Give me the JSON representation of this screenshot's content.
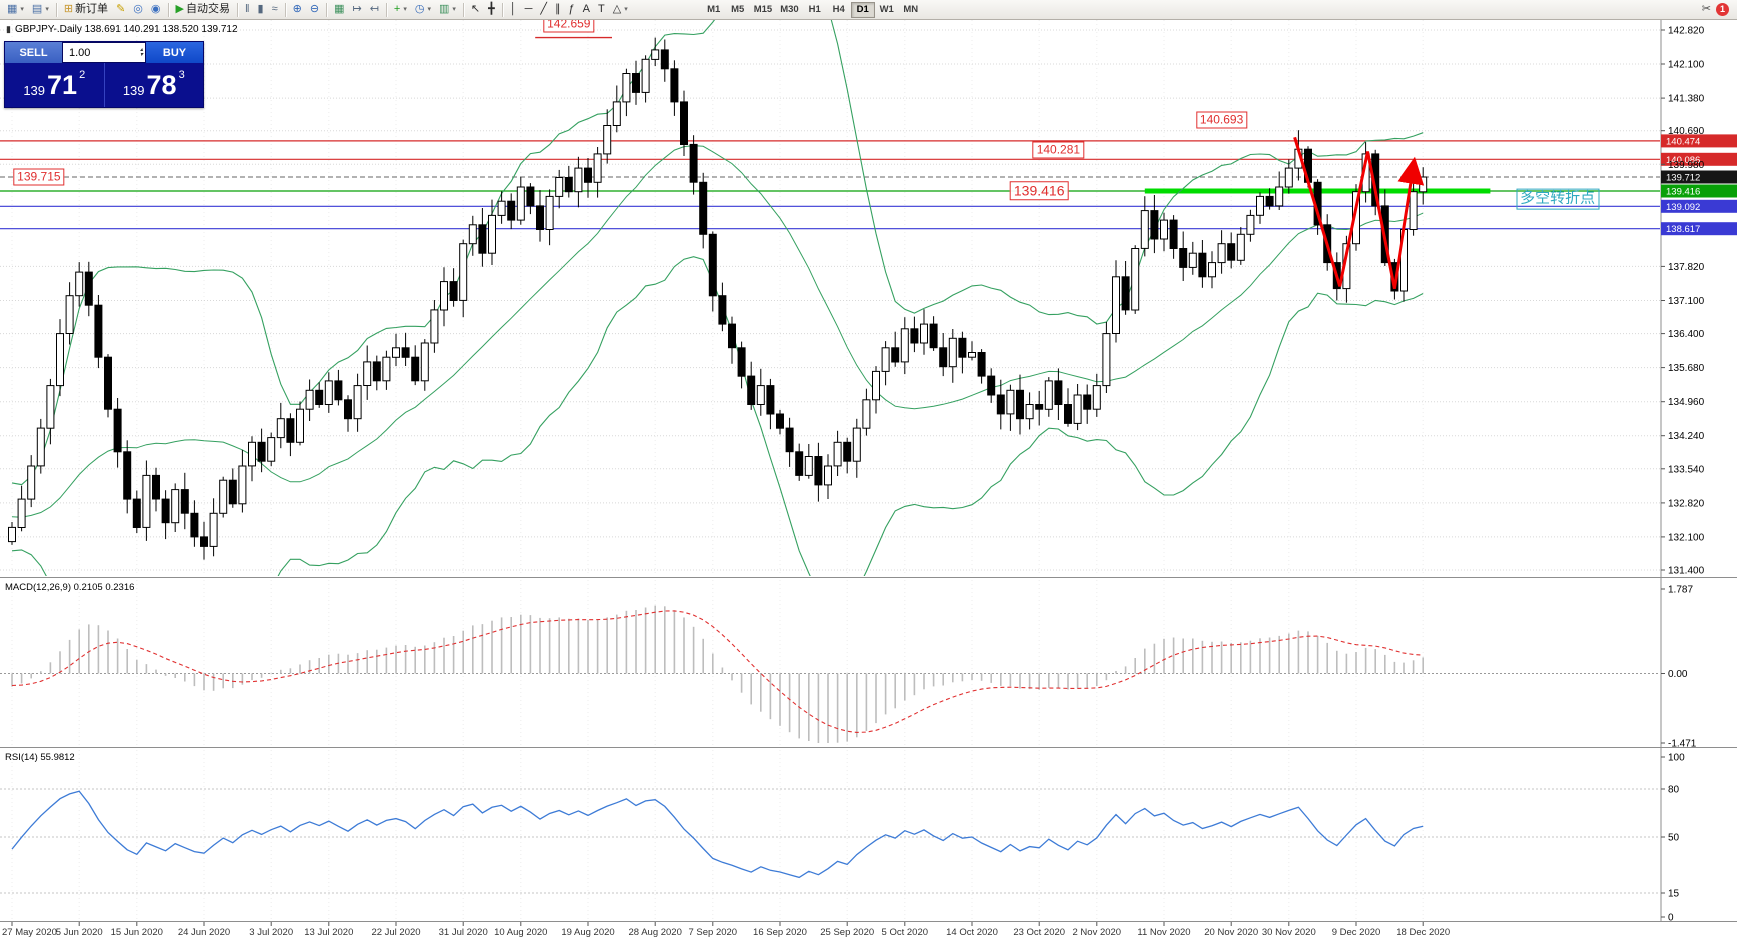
{
  "toolbar": {
    "items": [
      {
        "name": "new-chart",
        "glyph": "▦",
        "color": "#4a6fa5",
        "dropdown": true
      },
      {
        "name": "profiles",
        "glyph": "▤",
        "color": "#4a6fa5",
        "dropdown": true
      },
      {
        "sep": true
      },
      {
        "name": "new-order",
        "glyph": "⊞",
        "color": "#c8972f",
        "label": "新订单"
      },
      {
        "name": "metaeditor",
        "glyph": "✎",
        "color": "#c8a000"
      },
      {
        "name": "market-watch",
        "glyph": "◎",
        "color": "#3a6fc0"
      },
      {
        "name": "navigator",
        "glyph": "◉",
        "color": "#3a6fc0"
      },
      {
        "sep": true
      },
      {
        "name": "autotrading",
        "glyph": "▶",
        "color": "#27a027",
        "label": "自动交易"
      },
      {
        "sep": true
      },
      {
        "name": "bar-chart",
        "glyph": "‖",
        "color": "#55687f"
      },
      {
        "name": "candlestick-chart",
        "glyph": "▮",
        "color": "#55687f"
      },
      {
        "name": "line-chart",
        "glyph": "≈",
        "color": "#55687f"
      },
      {
        "sep": true
      },
      {
        "name": "zoom-in",
        "glyph": "⊕",
        "color": "#2f66b8"
      },
      {
        "name": "zoom-out",
        "glyph": "⊖",
        "color": "#2f66b8"
      },
      {
        "sep": true
      },
      {
        "name": "tile-windows",
        "glyph": "▦",
        "color": "#3a8f5a"
      },
      {
        "name": "auto-scroll",
        "glyph": "↦",
        "color": "#55687f"
      },
      {
        "name": "chart-shift",
        "glyph": "↤",
        "color": "#55687f"
      },
      {
        "sep": true
      },
      {
        "name": "indicators",
        "glyph": "+",
        "color": "#1f9e1f",
        "dropdown": true
      },
      {
        "name": "periods",
        "glyph": "◷",
        "color": "#2f66b8",
        "dropdown": true
      },
      {
        "name": "templates",
        "glyph": "▥",
        "color": "#3a8f5a",
        "dropdown": true
      },
      {
        "sep": true
      },
      {
        "name": "cursor",
        "glyph": "↖",
        "color": "#2c2c2c"
      },
      {
        "name": "crosshair",
        "glyph": "╋",
        "color": "#2c2c2c"
      },
      {
        "sep": true
      },
      {
        "name": "vertical-line",
        "glyph": "│",
        "color": "#2c2c2c"
      },
      {
        "name": "horizontal-line",
        "glyph": "─",
        "color": "#2c2c2c"
      },
      {
        "name": "trendline",
        "glyph": "╱",
        "color": "#2c2c2c"
      },
      {
        "name": "channel",
        "glyph": "∥",
        "color": "#2c2c2c"
      },
      {
        "name": "fibonacci",
        "glyph": "ƒ",
        "color": "#2c2c2c"
      },
      {
        "name": "text",
        "glyph": "A",
        "color": "#2c2c2c"
      },
      {
        "name": "label",
        "glyph": "T",
        "color": "#2c2c2c"
      },
      {
        "name": "shapes",
        "glyph": "△",
        "color": "#2c2c2c",
        "dropdown": true
      }
    ],
    "timeframes": [
      "M1",
      "M5",
      "M15",
      "M30",
      "H1",
      "H4",
      "D1",
      "W1",
      "MN"
    ],
    "active_timeframe": "D1",
    "scissors_glyph": "✂",
    "notification_count": "1"
  },
  "chart": {
    "caption": "GBPJPY-.Daily  138.691 140.291 138.520 139.712",
    "caption_icon": "▮",
    "trade_panel": {
      "sell_label": "SELL",
      "buy_label": "BUY",
      "volume": "1.00",
      "bid": {
        "prefix": "139",
        "big": "71",
        "sup": "2"
      },
      "ask": {
        "prefix": "139",
        "big": "78",
        "sup": "3"
      }
    },
    "price_axis": [
      {
        "label": "142.820",
        "price": 142.82,
        "type": "plain"
      },
      {
        "label": "142.100",
        "price": 142.1,
        "type": "plain"
      },
      {
        "label": "141.380",
        "price": 141.38,
        "type": "plain"
      },
      {
        "label": "140.690",
        "price": 140.69,
        "type": "plain"
      },
      {
        "label": "140.474",
        "price": 140.474,
        "type": "red"
      },
      {
        "label": "140.086",
        "price": 140.086,
        "type": "red"
      },
      {
        "label": "139.980",
        "price": 139.98,
        "type": "plain"
      },
      {
        "label": "139.712",
        "price": 139.712,
        "type": "current"
      },
      {
        "label": "139.416",
        "price": 139.416,
        "type": "green"
      },
      {
        "label": "139.092",
        "price": 139.092,
        "type": "blue"
      },
      {
        "label": "138.617",
        "price": 138.617,
        "type": "blue"
      },
      {
        "label": "137.820",
        "price": 137.82,
        "type": "plain"
      },
      {
        "label": "137.100",
        "price": 137.1,
        "type": "plain"
      },
      {
        "label": "136.400",
        "price": 136.4,
        "type": "plain"
      },
      {
        "label": "135.680",
        "price": 135.68,
        "type": "plain"
      },
      {
        "label": "134.960",
        "price": 134.96,
        "type": "plain"
      },
      {
        "label": "134.240",
        "price": 134.24,
        "type": "plain"
      },
      {
        "label": "133.540",
        "price": 133.54,
        "type": "plain"
      },
      {
        "label": "132.820",
        "price": 132.82,
        "type": "plain"
      },
      {
        "label": "132.100",
        "price": 132.1,
        "type": "plain"
      },
      {
        "label": "131.400",
        "price": 131.4,
        "type": "plain"
      }
    ],
    "lime_line": {
      "x1i": 118,
      "x2i": 154,
      "price": 139.416,
      "width": 5,
      "color": "#00dc00"
    },
    "red_underline": {
      "x1i": 54.5,
      "x2i": 62.5,
      "price": 142.659,
      "color": "#d62a2a"
    },
    "zigzag": {
      "color": "#f00000",
      "width": 3,
      "points": [
        [
          133.6,
          140.55
        ],
        [
          138.3,
          137.4
        ],
        [
          141.2,
          140.25
        ],
        [
          144.0,
          137.35
        ],
        [
          146.0,
          139.95
        ]
      ]
    },
    "annotations": [
      {
        "name": "high-price-label",
        "text": "142.659",
        "xi": 58,
        "price": 142.95,
        "style": "red",
        "size": 12
      },
      {
        "name": "resistance-label-1",
        "text": "140.693",
        "xi": 126,
        "price": 140.92,
        "style": "red",
        "size": 12
      },
      {
        "name": "resistance-label-2",
        "text": "140.281",
        "xi": 109,
        "price": 140.28,
        "style": "red",
        "size": 12
      },
      {
        "name": "key-level-label",
        "text": "139.416",
        "xi": 107,
        "price": 139.42,
        "style": "red",
        "size": 14
      },
      {
        "name": "left-price-label",
        "text": "139.715",
        "xi": 2.8,
        "price": 139.715,
        "style": "red",
        "size": 12
      },
      {
        "name": "turning-point-label",
        "text": "多空转折点",
        "xi": 161,
        "price": 139.25,
        "style": "teal",
        "size": 15
      }
    ],
    "dates": [
      {
        "i": 0,
        "label": "27 May 2020"
      },
      {
        "i": 7,
        "label": "5 Jun 2020"
      },
      {
        "i": 13,
        "label": "15 Jun 2020"
      },
      {
        "i": 20,
        "label": "24 Jun 2020"
      },
      {
        "i": 27,
        "label": "3 Jul 2020"
      },
      {
        "i": 33,
        "label": "13 Jul 2020"
      },
      {
        "i": 40,
        "label": "22 Jul 2020"
      },
      {
        "i": 47,
        "label": "31 Jul 2020"
      },
      {
        "i": 53,
        "label": "10 Aug 2020"
      },
      {
        "i": 60,
        "label": "19 Aug 2020"
      },
      {
        "i": 67,
        "label": "28 Aug 2020"
      },
      {
        "i": 73,
        "label": "7 Sep 2020"
      },
      {
        "i": 80,
        "label": "16 Sep 2020"
      },
      {
        "i": 87,
        "label": "25 Sep 2020"
      },
      {
        "i": 93,
        "label": "5 Oct 2020"
      },
      {
        "i": 100,
        "label": "14 Oct 2020"
      },
      {
        "i": 107,
        "label": "23 Oct 2020"
      },
      {
        "i": 113,
        "label": "2 Nov 2020"
      },
      {
        "i": 120,
        "label": "11 Nov 2020"
      },
      {
        "i": 127,
        "label": "20 Nov 2020"
      },
      {
        "i": 133,
        "label": "30 Nov 2020"
      },
      {
        "i": 140,
        "label": "9 Dec 2020"
      },
      {
        "i": 147,
        "label": "18 Dec 2020"
      }
    ],
    "colors": {
      "bull": "#ffffff",
      "bear": "#000000",
      "wick": "#000000",
      "bollinger": "#35a060",
      "grid": "#d8d8d8",
      "vgrid": "#ececec",
      "red": "#d62a2a",
      "green": "#08a008",
      "blue": "#3a3ad4",
      "current": "#151515",
      "macd_hist": "#bdbdbd",
      "macd_signal": "#e03030",
      "rsi": "#3d7bd6",
      "level": "#c4c4c4"
    }
  },
  "chart_data": {
    "type": "candlestick",
    "symbol": "GBPJPY-",
    "timeframe": "Daily",
    "ohlc_display": {
      "open": "138.691",
      "high": "140.291",
      "low": "138.520",
      "close": "139.712"
    },
    "pre_closes": [
      133.4,
      133.1,
      132.8,
      133.2,
      132.9,
      132.6,
      132.3,
      132.7,
      133.0,
      132.6,
      132.2,
      132.5,
      132.8,
      132.4,
      132.1,
      132.3,
      132.6,
      132.2,
      131.9,
      132.0
    ],
    "closes": [
      132.3,
      132.9,
      133.6,
      134.4,
      135.3,
      136.4,
      137.2,
      137.7,
      137.0,
      135.9,
      134.8,
      133.9,
      132.9,
      132.3,
      133.4,
      132.9,
      132.4,
      133.1,
      132.6,
      132.1,
      131.9,
      132.6,
      133.3,
      132.8,
      133.6,
      134.1,
      133.7,
      134.2,
      134.6,
      134.1,
      134.8,
      135.2,
      134.9,
      135.4,
      135.0,
      134.6,
      135.3,
      135.8,
      135.4,
      135.9,
      136.1,
      135.9,
      135.4,
      136.2,
      136.9,
      137.5,
      137.1,
      138.3,
      138.7,
      138.1,
      138.9,
      139.2,
      138.8,
      139.5,
      139.1,
      138.6,
      139.3,
      139.7,
      139.4,
      139.9,
      139.6,
      140.2,
      140.8,
      141.3,
      141.9,
      141.5,
      142.2,
      142.4,
      142.0,
      141.3,
      140.4,
      139.6,
      138.5,
      137.2,
      136.6,
      136.1,
      135.5,
      134.9,
      135.3,
      134.7,
      134.4,
      133.9,
      133.4,
      133.8,
      133.2,
      133.6,
      134.1,
      133.7,
      134.4,
      135.0,
      135.6,
      136.1,
      135.8,
      136.5,
      136.2,
      136.6,
      136.1,
      135.7,
      136.3,
      135.9,
      136.0,
      135.5,
      135.1,
      134.7,
      135.2,
      134.6,
      134.9,
      134.8,
      135.4,
      134.9,
      134.5,
      135.1,
      134.8,
      135.3,
      136.4,
      137.6,
      136.9,
      138.2,
      139.0,
      138.4,
      138.8,
      138.2,
      137.8,
      138.1,
      137.6,
      137.9,
      138.3,
      137.95,
      138.5,
      138.9,
      139.3,
      139.1,
      139.5,
      139.9,
      140.3,
      139.6,
      138.7,
      137.9,
      137.35,
      138.3,
      139.4,
      140.2,
      139.1,
      137.9,
      137.3,
      138.6,
      139.4,
      139.712
    ],
    "high_overrides": {
      "67": 142.66,
      "134": 140.7,
      "141": 140.45
    },
    "low_overrides": {
      "20": 131.62,
      "138": 137.1,
      "144": 137.12
    },
    "indicators": {
      "bollinger": {
        "period": 20,
        "deviation": 2
      },
      "macd": {
        "label": "MACD(12,26,9) 0.2105 0.2316",
        "fast": 12,
        "slow": 26,
        "signal": 9,
        "axis": [
          {
            "label": "1.787",
            "value": 1.787
          },
          {
            "label": "0.00",
            "value": 0
          },
          {
            "label": "-1.471",
            "value": -1.471
          }
        ],
        "range": [
          -1.471,
          1.787
        ]
      },
      "rsi": {
        "label": "RSI(14) 55.9812",
        "period": 14,
        "axis": [
          {
            "label": "100",
            "value": 100
          },
          {
            "label": "80",
            "value": 80
          },
          {
            "label": "50",
            "value": 50
          },
          {
            "label": "15",
            "value": 15
          },
          {
            "label": "0",
            "value": 0
          }
        ],
        "levels": [
          80,
          50,
          15
        ]
      }
    }
  }
}
